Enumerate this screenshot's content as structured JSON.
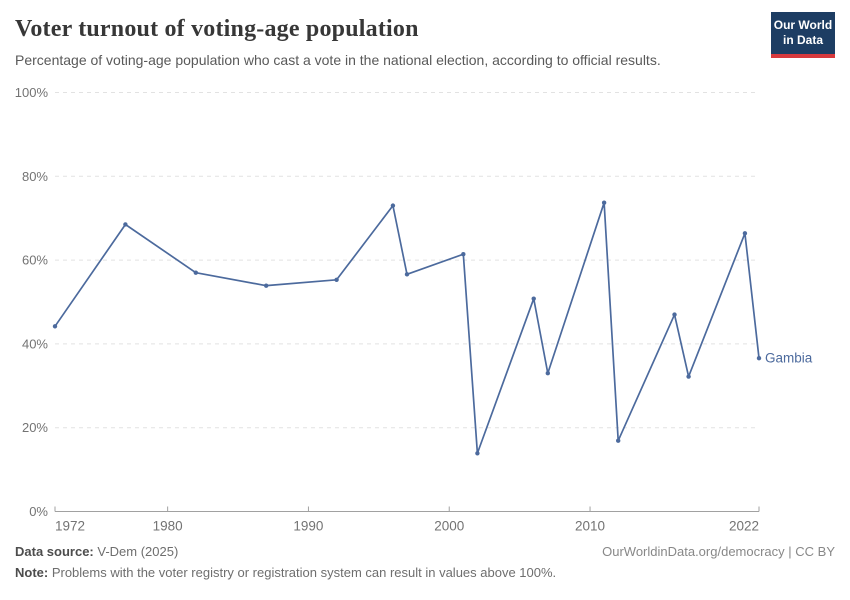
{
  "header": {
    "title": "Voter turnout of voting-age population",
    "subtitle": "Percentage of voting-age population who cast a vote in the national election, according to official results.",
    "logo": {
      "line1": "Our World",
      "line2": "in Data"
    }
  },
  "chart_data": {
    "type": "line",
    "title": "Voter turnout of voting-age population",
    "entity_label": "Gambia",
    "x": [
      1972,
      1977,
      1982,
      1987,
      1992,
      1996,
      1997,
      2001,
      2002,
      2006,
      2007,
      2011,
      2012,
      2016,
      2017,
      2021,
      2022
    ],
    "series": [
      {
        "name": "Gambia",
        "values": [
          44.2,
          68.5,
          57.0,
          53.9,
          55.3,
          73.0,
          56.6,
          61.4,
          13.9,
          50.8,
          33.0,
          73.7,
          16.9,
          47.0,
          32.2,
          66.4,
          36.6
        ]
      }
    ],
    "xlabel": "",
    "ylabel": "",
    "xlim": [
      1972,
      2022
    ],
    "ylim": [
      0,
      100
    ],
    "xticks": [
      {
        "value": 1972,
        "label": "1972"
      },
      {
        "value": 1980,
        "label": "1980"
      },
      {
        "value": 1990,
        "label": "1990"
      },
      {
        "value": 2000,
        "label": "2000"
      },
      {
        "value": 2010,
        "label": "2010"
      },
      {
        "value": 2022,
        "label": "2022"
      }
    ],
    "yticks": [
      {
        "value": 0,
        "label": "0%"
      },
      {
        "value": 20,
        "label": "20%"
      },
      {
        "value": 40,
        "label": "40%"
      },
      {
        "value": 60,
        "label": "60%"
      },
      {
        "value": 80,
        "label": "80%"
      },
      {
        "value": 100,
        "label": "100%"
      }
    ],
    "grid": "horizontal-dashed",
    "legend_position": "end-of-line-label",
    "line_color": "#4c6a9d",
    "tick_label_color": "#737373",
    "grid_color": "#e2e2e2",
    "axis_color": "#a1a1a1"
  },
  "footer": {
    "source_label": "Data source:",
    "source_text": " V-Dem (2025)",
    "note_label": "Note:",
    "note_text": " Problems with the voter registry or registration system can result in values above 100%.",
    "attribution": "OurWorldinData.org/democracy | CC BY"
  },
  "colors": {
    "accent": "#4c6a9d",
    "logo_background": "#1d3d63",
    "logo_red": "#d7393d",
    "title": "#373737",
    "subtitle": "#595959"
  }
}
